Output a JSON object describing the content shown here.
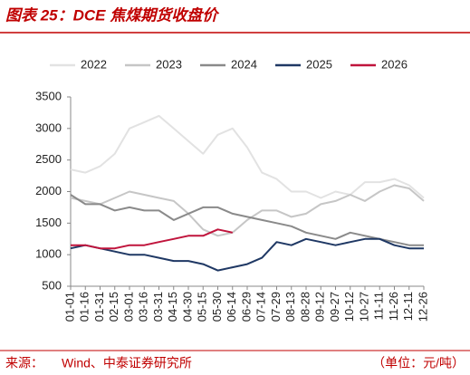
{
  "chart_data": {
    "type": "line",
    "title": "图表 25：DCE 焦煤期货收盘价",
    "source_label": "来源：",
    "source": "Wind、中泰证券研究所",
    "unit": "（单位：元/吨）",
    "categories": [
      "01-01",
      "01-16",
      "01-31",
      "02-15",
      "03-01",
      "03-16",
      "03-31",
      "04-15",
      "04-30",
      "05-15",
      "05-30",
      "06-14",
      "06-29",
      "07-14",
      "07-29",
      "08-13",
      "08-28",
      "09-12",
      "09-27",
      "10-12",
      "10-27",
      "11-11",
      "11-26",
      "12-11",
      "12-26"
    ],
    "series": [
      {
        "name": "2022",
        "color": "#e2e2e2",
        "values": [
          2350,
          2300,
          2400,
          2600,
          3000,
          3100,
          3200,
          3000,
          2800,
          2600,
          2900,
          3000,
          2700,
          2300,
          2200,
          2000,
          2000,
          1900,
          2000,
          1950,
          2150,
          2150,
          2200,
          2100,
          1900
        ]
      },
      {
        "name": "2023",
        "color": "#c6c6c6",
        "values": [
          1900,
          1850,
          1800,
          1900,
          2000,
          1950,
          1900,
          1850,
          1650,
          1400,
          1300,
          1350,
          1550,
          1700,
          1700,
          1600,
          1650,
          1800,
          1850,
          1950,
          1850,
          2000,
          2100,
          2050,
          1850
        ]
      },
      {
        "name": "2024",
        "color": "#8a8a8a",
        "values": [
          1950,
          1800,
          1800,
          1700,
          1750,
          1700,
          1700,
          1550,
          1650,
          1750,
          1750,
          1650,
          1600,
          1550,
          1500,
          1450,
          1350,
          1300,
          1250,
          1350,
          1300,
          1250,
          1200,
          1150,
          1150
        ]
      },
      {
        "name": "2025",
        "color": "#1f3864",
        "values": [
          1100,
          1150,
          1100,
          1050,
          1000,
          1000,
          950,
          900,
          900,
          850,
          750,
          800,
          850,
          950,
          1200,
          1150,
          1250,
          1200,
          1150,
          1200,
          1250,
          1250,
          1150,
          1100,
          1100
        ]
      },
      {
        "name": "2026",
        "color": "#c0143c",
        "values": [
          1150,
          1150,
          1100,
          1100,
          1150,
          1150,
          1200,
          1250,
          1300,
          1300,
          1400,
          1350,
          null,
          null,
          null,
          null,
          null,
          null,
          null,
          null,
          null,
          null,
          null,
          null,
          null
        ]
      }
    ],
    "ylim": [
      500,
      3500
    ],
    "yticks": [
      500,
      1000,
      1500,
      2000,
      2500,
      3000,
      3500
    ],
    "grid": false
  }
}
